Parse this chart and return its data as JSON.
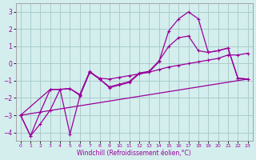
{
  "xlabel": "Windchill (Refroidissement éolien,°C)",
  "background_color": "#d4eeee",
  "grid_color": "#aacccc",
  "line_color": "#990099",
  "xlim": [
    -0.5,
    23.5
  ],
  "ylim": [
    -4.5,
    3.5
  ],
  "xticks": [
    0,
    1,
    2,
    3,
    4,
    5,
    6,
    7,
    8,
    9,
    10,
    11,
    12,
    13,
    14,
    15,
    16,
    17,
    18,
    19,
    20,
    21,
    22,
    23
  ],
  "yticks": [
    -4,
    -3,
    -2,
    -1,
    0,
    1,
    2,
    3
  ],
  "series1_x": [
    0,
    1,
    2,
    3,
    4,
    5,
    6,
    7,
    8,
    9,
    10,
    11,
    12,
    13,
    14,
    15,
    16,
    17,
    18,
    19,
    20,
    21,
    22,
    23
  ],
  "series1_y": [
    -3.0,
    -4.2,
    -3.5,
    -2.7,
    -1.5,
    -4.1,
    -1.9,
    -0.5,
    -0.9,
    -1.4,
    -1.25,
    -1.1,
    -0.6,
    -0.5,
    0.1,
    1.9,
    2.6,
    3.0,
    2.6,
    0.65,
    0.75,
    0.9,
    -0.85,
    -0.9
  ],
  "series2_x": [
    0,
    3,
    4,
    5,
    6,
    7,
    8,
    9,
    10,
    11,
    12,
    13,
    14,
    15,
    16,
    17,
    18,
    19,
    20,
    21,
    22,
    23
  ],
  "series2_y": [
    -3.0,
    -1.5,
    -1.5,
    -1.45,
    -1.8,
    -0.45,
    -0.9,
    -1.35,
    -1.2,
    -1.05,
    -0.55,
    -0.45,
    0.15,
    1.0,
    1.5,
    1.6,
    0.75,
    0.65,
    0.75,
    0.9,
    -0.85,
    -0.9
  ],
  "series3_x": [
    0,
    1,
    2,
    3,
    4,
    5,
    6,
    7,
    8,
    9,
    10,
    11,
    12,
    13,
    14,
    15,
    16,
    17,
    18,
    19,
    20,
    21,
    22,
    23
  ],
  "series3_y": [
    -3.0,
    -4.2,
    -2.8,
    -1.5,
    -1.5,
    -1.45,
    -1.85,
    -0.5,
    -0.85,
    -0.9,
    -0.8,
    -0.7,
    -0.6,
    -0.5,
    -0.35,
    -0.2,
    -0.1,
    0.0,
    0.1,
    0.2,
    0.3,
    0.5,
    0.5,
    0.6
  ]
}
